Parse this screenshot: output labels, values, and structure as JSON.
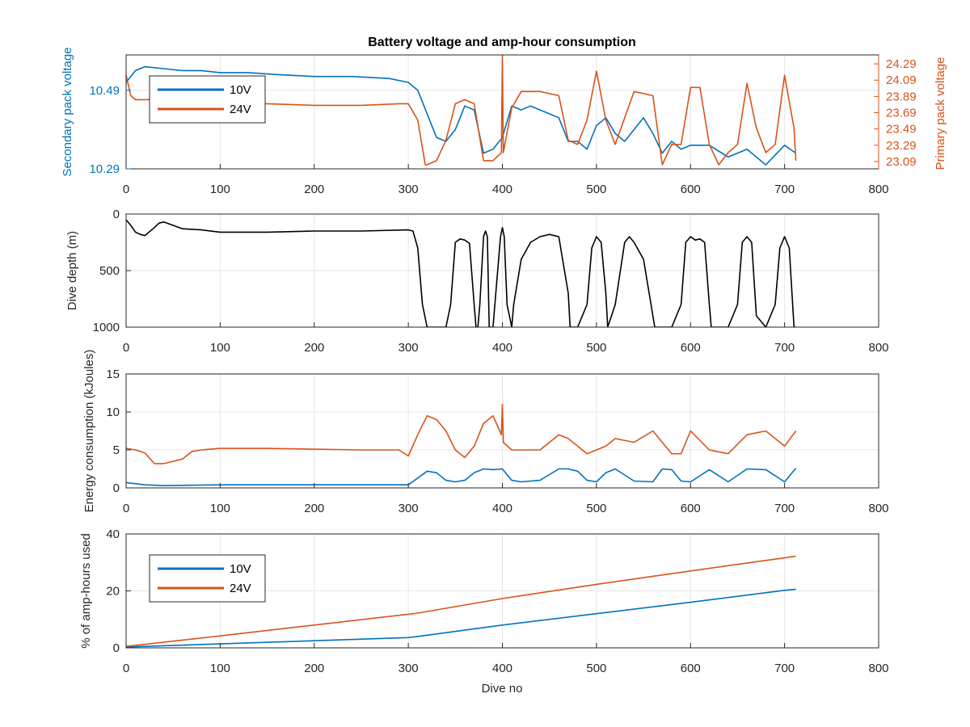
{
  "figure": {
    "title": "Battery voltage and amp-hour consumption",
    "xlabel": "Dive no"
  },
  "colors": {
    "blue": "#0072BD",
    "orange": "#D95319",
    "black": "#000000",
    "grid": "#e6e6e6",
    "axis": "#262626"
  },
  "chart_data": [
    {
      "type": "line",
      "subplot": "voltage",
      "title": "Battery voltage and amp-hour consumption",
      "xlabel": "",
      "ylabel_left": "Secondary pack voltage",
      "ylabel_right": "Primary pack voltage",
      "xlim": [
        0,
        800
      ],
      "xticks": [
        "0",
        "100",
        "200",
        "300",
        "400",
        "500",
        "600",
        "700",
        "800"
      ],
      "ylim_left": [
        10.29,
        10.58
      ],
      "yticks_left": [
        "10.29",
        "10.49"
      ],
      "ylim_right": [
        23.0,
        24.4
      ],
      "yticks_right": [
        "23.09",
        "23.29",
        "23.49",
        "23.69",
        "23.89",
        "24.09",
        "24.29"
      ],
      "legend": [
        "10V",
        "24V"
      ],
      "legend_position": "top-left",
      "grid": true,
      "series": [
        {
          "name": "10V",
          "axis": "left",
          "x": [
            0,
            10,
            20,
            40,
            60,
            80,
            100,
            130,
            160,
            200,
            240,
            280,
            300,
            310,
            320,
            330,
            340,
            350,
            360,
            370,
            380,
            390,
            400,
            410,
            420,
            430,
            440,
            450,
            460,
            470,
            480,
            490,
            500,
            510,
            520,
            530,
            540,
            550,
            560,
            570,
            580,
            590,
            600,
            620,
            640,
            660,
            680,
            700,
            712
          ],
          "y": [
            10.51,
            10.54,
            10.55,
            10.545,
            10.54,
            10.54,
            10.535,
            10.535,
            10.53,
            10.525,
            10.525,
            10.52,
            10.51,
            10.49,
            10.43,
            10.37,
            10.36,
            10.39,
            10.45,
            10.44,
            10.33,
            10.34,
            10.37,
            10.45,
            10.44,
            10.45,
            10.44,
            10.43,
            10.42,
            10.36,
            10.36,
            10.34,
            10.4,
            10.42,
            10.38,
            10.36,
            10.39,
            10.42,
            10.38,
            10.33,
            10.36,
            10.34,
            10.35,
            10.35,
            10.32,
            10.34,
            10.3,
            10.35,
            10.33
          ]
        },
        {
          "name": "24V",
          "axis": "right",
          "x": [
            0,
            5,
            10,
            20,
            40,
            60,
            80,
            100,
            150,
            200,
            250,
            290,
            300,
            310,
            318,
            320,
            330,
            340,
            350,
            360,
            370,
            380,
            390,
            399,
            400,
            401,
            410,
            420,
            440,
            460,
            470,
            480,
            490,
            500,
            510,
            520,
            540,
            560,
            570,
            580,
            590,
            600,
            610,
            620,
            630,
            640,
            650,
            660,
            670,
            680,
            690,
            700,
            710,
            712
          ],
          "y": [
            24.15,
            23.9,
            23.85,
            23.85,
            23.86,
            23.87,
            23.85,
            23.83,
            23.8,
            23.78,
            23.78,
            23.8,
            23.8,
            23.6,
            23.05,
            23.05,
            23.1,
            23.35,
            23.8,
            23.85,
            23.8,
            23.1,
            23.1,
            23.2,
            24.4,
            23.2,
            23.75,
            23.95,
            23.95,
            23.9,
            23.35,
            23.3,
            23.6,
            24.2,
            23.6,
            23.3,
            23.95,
            23.9,
            23.05,
            23.3,
            23.3,
            24.0,
            24.0,
            23.3,
            23.05,
            23.2,
            23.3,
            24.05,
            23.5,
            23.2,
            23.3,
            24.15,
            23.5,
            23.1
          ]
        }
      ]
    },
    {
      "type": "line",
      "subplot": "depth",
      "xlabel": "",
      "ylabel": "Dive depth (m)",
      "xlim": [
        0,
        800
      ],
      "xticks": [
        "0",
        "100",
        "200",
        "300",
        "400",
        "500",
        "600",
        "700",
        "800"
      ],
      "ylim": [
        0,
        1000
      ],
      "y_reversed": true,
      "yticks": [
        "0",
        "500",
        "1000"
      ],
      "grid": true,
      "series": [
        {
          "color": "black",
          "x": [
            0,
            5,
            10,
            15,
            20,
            30,
            35,
            40,
            50,
            60,
            80,
            100,
            150,
            200,
            250,
            300,
            305,
            310,
            315,
            320,
            340,
            345,
            350,
            355,
            360,
            365,
            370,
            372,
            374,
            376,
            380,
            382,
            384,
            386,
            390,
            392,
            395,
            398,
            400,
            402,
            405,
            410,
            412,
            420,
            430,
            440,
            450,
            460,
            470,
            472,
            480,
            490,
            495,
            500,
            505,
            510,
            512,
            520,
            530,
            535,
            540,
            550,
            560,
            562,
            580,
            590,
            595,
            600,
            605,
            610,
            615,
            620,
            622,
            640,
            650,
            655,
            660,
            665,
            670,
            680,
            690,
            695,
            700,
            705,
            710,
            712
          ],
          "y": [
            50,
            100,
            160,
            180,
            190,
            120,
            80,
            70,
            100,
            130,
            140,
            160,
            160,
            150,
            150,
            140,
            150,
            300,
            800,
            1000,
            1000,
            800,
            250,
            220,
            230,
            260,
            800,
            1000,
            1000,
            800,
            200,
            150,
            200,
            1000,
            1000,
            800,
            500,
            200,
            120,
            200,
            800,
            1000,
            800,
            400,
            250,
            200,
            180,
            200,
            700,
            1000,
            1000,
            800,
            300,
            200,
            250,
            700,
            1000,
            800,
            250,
            200,
            250,
            400,
            900,
            1000,
            1000,
            800,
            250,
            200,
            230,
            220,
            250,
            800,
            1000,
            1000,
            800,
            250,
            200,
            250,
            900,
            1000,
            800,
            300,
            200,
            300,
            1000,
            1000
          ]
        }
      ]
    },
    {
      "type": "line",
      "subplot": "energy",
      "xlabel": "",
      "ylabel": "Energy consumption (kJoules)",
      "xlim": [
        0,
        800
      ],
      "xticks": [
        "0",
        "100",
        "200",
        "300",
        "400",
        "500",
        "600",
        "700",
        "800"
      ],
      "ylim": [
        0,
        15
      ],
      "yticks": [
        "0",
        "5",
        "10",
        "15"
      ],
      "grid": true,
      "series": [
        {
          "name": "24V",
          "x": [
            0,
            10,
            20,
            30,
            40,
            50,
            60,
            70,
            80,
            100,
            150,
            200,
            250,
            290,
            300,
            310,
            320,
            330,
            340,
            350,
            360,
            370,
            380,
            390,
            399,
            400,
            401,
            410,
            420,
            440,
            460,
            470,
            480,
            490,
            500,
            510,
            520,
            540,
            560,
            570,
            580,
            590,
            600,
            620,
            640,
            660,
            680,
            700,
            712
          ],
          "y": [
            5.2,
            5.0,
            4.6,
            3.2,
            3.2,
            3.5,
            3.8,
            4.8,
            5.0,
            5.2,
            5.2,
            5.1,
            5.0,
            5.0,
            4.2,
            7.0,
            9.5,
            9.0,
            7.5,
            5.0,
            4.0,
            5.5,
            8.5,
            9.5,
            7.0,
            11.0,
            6.0,
            5.0,
            5.0,
            5.0,
            7.0,
            6.5,
            5.5,
            4.5,
            5.0,
            5.5,
            6.5,
            6.0,
            7.5,
            6.0,
            4.5,
            4.5,
            7.5,
            5.0,
            4.5,
            7.0,
            7.5,
            5.5,
            7.5
          ]
        },
        {
          "name": "10V",
          "x": [
            0,
            20,
            40,
            100,
            200,
            300,
            310,
            320,
            330,
            340,
            350,
            360,
            370,
            380,
            390,
            400,
            410,
            420,
            440,
            460,
            470,
            480,
            490,
            500,
            510,
            520,
            540,
            560,
            570,
            580,
            590,
            600,
            620,
            640,
            660,
            680,
            700,
            712
          ],
          "y": [
            0.7,
            0.4,
            0.3,
            0.4,
            0.4,
            0.4,
            1.3,
            2.2,
            2.0,
            1.0,
            0.8,
            1.0,
            2.0,
            2.5,
            2.4,
            2.5,
            1.0,
            0.8,
            1.0,
            2.5,
            2.5,
            2.2,
            1.0,
            0.8,
            2.0,
            2.5,
            0.9,
            0.8,
            2.5,
            2.4,
            0.9,
            0.8,
            2.4,
            0.8,
            2.5,
            2.4,
            0.8,
            2.6
          ]
        }
      ]
    },
    {
      "type": "line",
      "subplot": "amphours",
      "xlabel": "Dive no",
      "ylabel": "% of amp-hours used",
      "xlim": [
        0,
        800
      ],
      "xticks": [
        "0",
        "100",
        "200",
        "300",
        "400",
        "500",
        "600",
        "700",
        "800"
      ],
      "ylim": [
        0,
        40
      ],
      "yticks": [
        "0",
        "20",
        "40"
      ],
      "legend": [
        "10V",
        "24V"
      ],
      "legend_position": "top-left",
      "grid": true,
      "series": [
        {
          "name": "10V",
          "x": [
            0,
            100,
            200,
            300,
            310,
            400,
            500,
            600,
            700,
            712
          ],
          "y": [
            0.3,
            1.4,
            2.5,
            3.6,
            4.0,
            8.0,
            12.0,
            16.0,
            20.2,
            20.6
          ]
        },
        {
          "name": "24V",
          "x": [
            0,
            100,
            200,
            300,
            310,
            400,
            500,
            600,
            700,
            712
          ],
          "y": [
            0.5,
            4.2,
            8.0,
            11.8,
            12.2,
            17.3,
            22.3,
            27.0,
            31.6,
            32.2
          ]
        }
      ]
    }
  ]
}
